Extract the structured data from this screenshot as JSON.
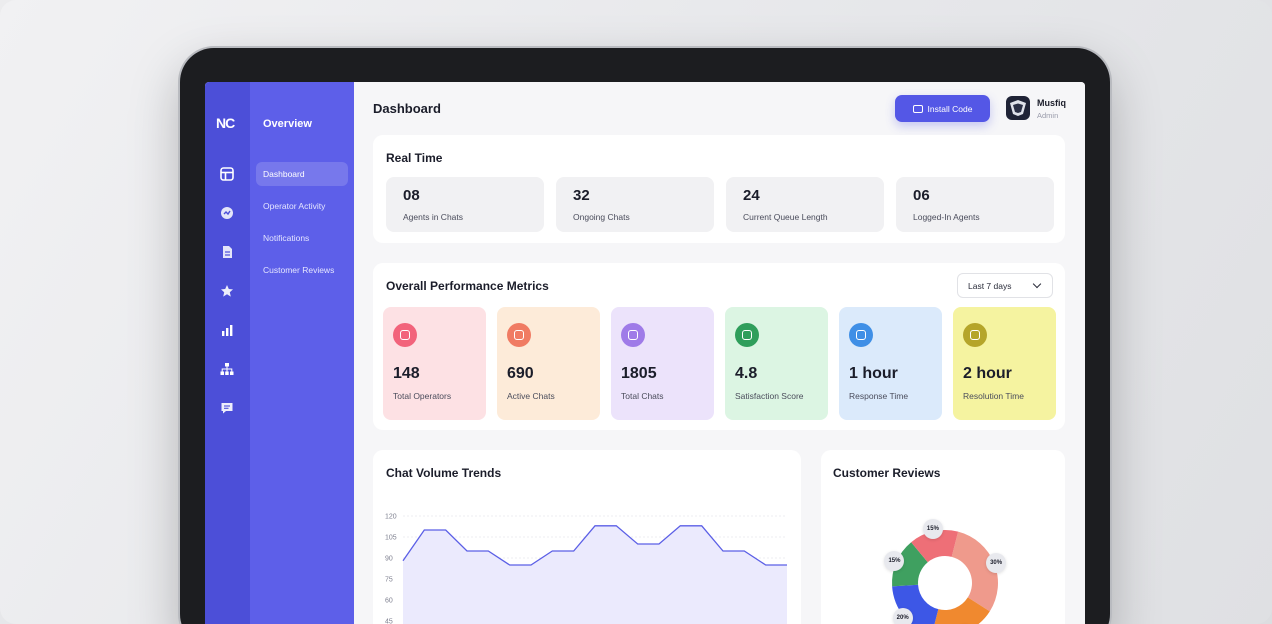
{
  "app": {
    "logo": "NC"
  },
  "rail_icons": [
    "dashboard-icon",
    "activity-icon",
    "document-icon",
    "star-icon",
    "bar-chart-icon",
    "hierarchy-icon",
    "message-icon"
  ],
  "menu": {
    "title": "Overview",
    "items": [
      {
        "label": "Dashboard",
        "active": true
      },
      {
        "label": "Operator Activity",
        "active": false
      },
      {
        "label": "Notifications",
        "active": false
      },
      {
        "label": "Customer Reviews",
        "active": false
      }
    ]
  },
  "header": {
    "title": "Dashboard",
    "install_label": "Install Code",
    "user_name": "Musfiq",
    "user_role": "Admin"
  },
  "real_time": {
    "title": "Real Time",
    "stats": [
      {
        "value": "08",
        "label": "Agents in Chats"
      },
      {
        "value": "32",
        "label": "Ongoing Chats"
      },
      {
        "value": "24",
        "label": "Current Queue Length"
      },
      {
        "value": "06",
        "label": "Logged-In Agents"
      }
    ]
  },
  "performance": {
    "title": "Overall Performance Metrics",
    "range": "Last 7 days",
    "metrics": [
      {
        "value": "148",
        "label": "Total Operators",
        "bg": "#fde1e4",
        "icon_bg": "#f2637b"
      },
      {
        "value": "690",
        "label": "Active Chats",
        "bg": "#fdebd9",
        "icon_bg": "#f07b63"
      },
      {
        "value": "1805",
        "label": "Total Chats",
        "bg": "#ece3fb",
        "icon_bg": "#9f7be8"
      },
      {
        "value": "4.8",
        "label": "Satisfaction Score",
        "bg": "#dcf5e3",
        "icon_bg": "#2f9e5b"
      },
      {
        "value": "1 hour",
        "label": "Response Time",
        "bg": "#dbeafb",
        "icon_bg": "#3f8fe6"
      },
      {
        "value": "2 hour",
        "label": "Resolution Time",
        "bg": "#f5f3a0",
        "icon_bg": "#b5a52a"
      }
    ]
  },
  "chat_volume": {
    "title": "Chat Volume Trends",
    "chart_data": {
      "type": "area",
      "title": "Chat Volume Trends",
      "y_ticks": [
        "120",
        "105",
        "90",
        "75",
        "60",
        "45"
      ],
      "ylim": [
        45,
        120
      ],
      "values": [
        88,
        110,
        110,
        95,
        95,
        85,
        85,
        95,
        95,
        113,
        113,
        100,
        100,
        113,
        113,
        95,
        95,
        85,
        85
      ],
      "color": "#5b5fe6",
      "fill": "#ebeafd"
    }
  },
  "reviews": {
    "title": "Customer Reviews",
    "chart_data": {
      "type": "pie",
      "title": "Customer Reviews",
      "slices": [
        {
          "value": 30,
          "label": "30%",
          "color": "#ef9a8c"
        },
        {
          "value": 20,
          "label": "20%",
          "color": "#f0892f"
        },
        {
          "value": 20,
          "label": "20%",
          "color": "#3d57e6"
        },
        {
          "value": 15,
          "label": "15%",
          "color": "#3fa060"
        },
        {
          "value": 15,
          "label": "15%",
          "color": "#ee6f77"
        }
      ]
    }
  }
}
